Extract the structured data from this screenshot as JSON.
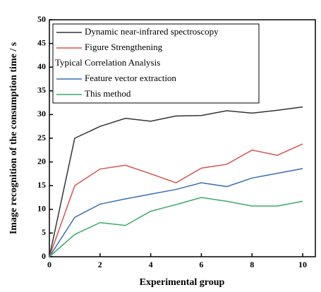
{
  "chart_data": {
    "type": "line",
    "x_label": "Experimental group",
    "y_label": "Image recognition of the consumption time / s",
    "x": [
      0,
      1,
      2,
      3,
      4,
      5,
      6,
      7,
      8,
      9,
      10
    ],
    "series": [
      {
        "name": "Dynamic near-infrared spectroscopy",
        "color": "#333333",
        "values": [
          0,
          25,
          27.5,
          29.2,
          28.6,
          29.7,
          29.8,
          30.8,
          30.3,
          30.9,
          31.6
        ]
      },
      {
        "name": "Figure Strengthening",
        "color": "#d9534f",
        "values": [
          0,
          15,
          18.5,
          19.3,
          17.5,
          15.6,
          18.7,
          19.5,
          22.5,
          21.4,
          23.8
        ]
      },
      {
        "name": "Typical Correlation Analysis",
        "values": [
          null,
          null,
          null,
          null,
          null,
          null,
          null,
          null,
          null,
          null,
          null
        ]
      },
      {
        "name": "Feature vector extraction",
        "color": "#3a6fb0",
        "values": [
          0,
          8.3,
          11.1,
          12.2,
          13.2,
          14.2,
          15.6,
          14.8,
          16.6,
          17.6,
          18.6
        ]
      },
      {
        "name": "This method",
        "color": "#3aaa6a",
        "values": [
          0,
          4.7,
          7.2,
          6.6,
          9.6,
          11.0,
          12.5,
          11.7,
          10.7,
          10.7,
          11.7
        ]
      }
    ],
    "xlim": [
      0,
      10.5
    ],
    "xticks": [
      0,
      2,
      4,
      6,
      8,
      10
    ],
    "ylim": [
      0,
      50
    ],
    "yticks": [
      0,
      5,
      10,
      15,
      20,
      25,
      30,
      35,
      40,
      45,
      50
    ],
    "legend": "upper left"
  }
}
